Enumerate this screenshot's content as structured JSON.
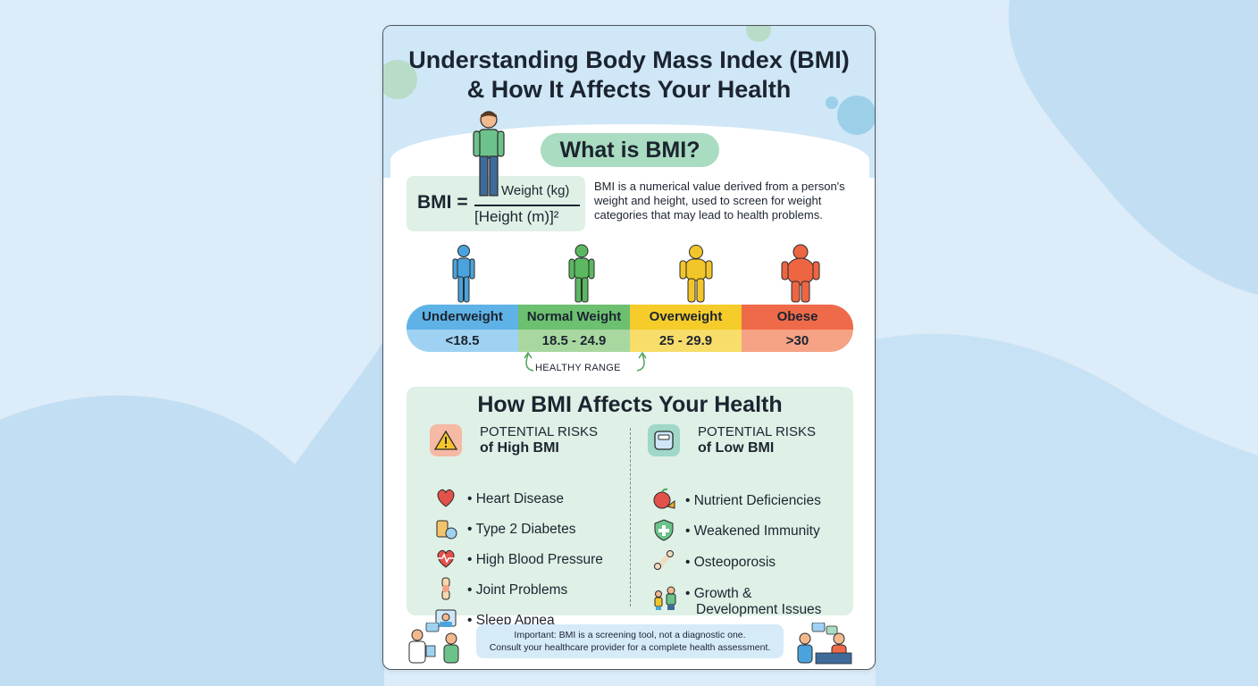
{
  "title": {
    "line1": "Understanding Body Mass Index (BMI)",
    "line2": "& How It Affects Your Health"
  },
  "what_is": {
    "heading": "What is BMI?",
    "formula": {
      "lhs": "BMI =",
      "numerator": "Weight (kg)",
      "denominator": "[Height (m)]²"
    },
    "description": "BMI is a numerical value derived from a person's weight and height, used to screen for weight categories that may lead to health problems."
  },
  "categories": [
    {
      "label": "Underweight",
      "range": "<18.5",
      "color_top": "#5fb2e6",
      "color_bottom": "#9fd2f2",
      "figure_color": "#4aa3dc"
    },
    {
      "label": "Normal Weight",
      "range": "18.5 - 24.9",
      "color_top": "#6cc070",
      "color_bottom": "#a8d8a0",
      "figure_color": "#5bb860"
    },
    {
      "label": "Overweight",
      "range": "25 - 29.9",
      "color_top": "#f5cc2a",
      "color_bottom": "#f8dd6a",
      "figure_color": "#f2c62a"
    },
    {
      "label": "Obese",
      "range": ">30",
      "color_top": "#ef6a48",
      "color_bottom": "#f5a285",
      "figure_color": "#ee6542"
    }
  ],
  "healthy_range": "HEALTHY RANGE",
  "health": {
    "heading": "How BMI Affects Your Health",
    "high": {
      "title_line1": "POTENTIAL RISKS",
      "title_line2": "of High BMI",
      "icon": "warning-icon",
      "items": [
        {
          "label": "Heart Disease",
          "icon": "heart-icon"
        },
        {
          "label": "Type 2 Diabetes",
          "icon": "insulin-icon"
        },
        {
          "label": "High Blood Pressure",
          "icon": "heart-pulse-icon"
        },
        {
          "label": "Joint Problems",
          "icon": "knee-joint-icon"
        },
        {
          "label": "Sleep Apnea",
          "icon": "sleeping-person-icon"
        }
      ]
    },
    "low": {
      "title_line1": "POTENTIAL RISKS",
      "title_line2": "of Low BMI",
      "icon": "scale-icon",
      "items": [
        {
          "label": "Nutrient Deficiencies",
          "icon": "apple-icon"
        },
        {
          "label": "Weakened Immunity",
          "icon": "shield-icon"
        },
        {
          "label": "Osteoporosis",
          "icon": "bone-icon"
        },
        {
          "label": "Growth &\nDevelopment Issues",
          "icon": "family-icon",
          "line1": "Growth &",
          "line2": "Development Issues"
        }
      ]
    }
  },
  "note": {
    "line1": "Important: BMI is a screening tool, not a diagnostic one.",
    "line2": "Consult your healthcare provider for a complete health assessment."
  }
}
